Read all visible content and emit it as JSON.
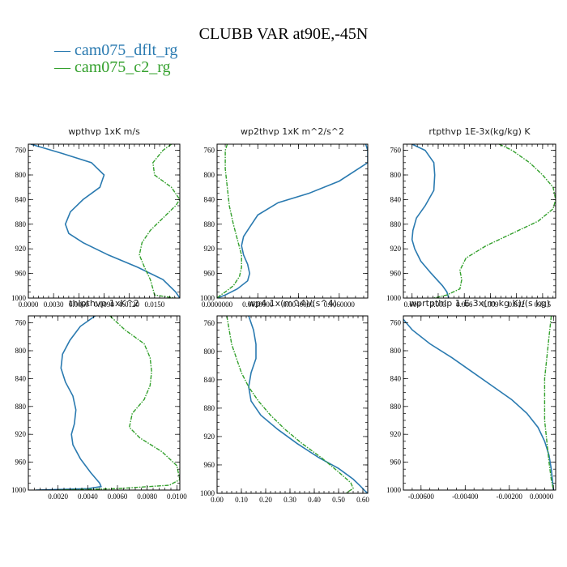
{
  "figure": {
    "title": "CLUBB VAR at90E,-45N",
    "legend": [
      {
        "label": "cam075_dflt_rg",
        "color": "#2a7ab0"
      },
      {
        "label": "cam075_c2_rg",
        "color": "#33a02c"
      }
    ]
  },
  "chart_data": [
    {
      "type": "line",
      "title": "wpthvp  1xK m/s",
      "xlim": [
        0.0,
        0.018
      ],
      "ylim": [
        1000,
        750
      ],
      "xticks": [
        "0.0000",
        "0.0030",
        "0.0060",
        "0.0090",
        "0.0120",
        "0.0150"
      ],
      "xtick_values": [
        0,
        0.003,
        0.006,
        0.009,
        0.012,
        0.015
      ],
      "yticks": [
        "760",
        "800",
        "840",
        "880",
        "920",
        "960",
        "1000"
      ],
      "ytick_values": [
        760,
        800,
        840,
        880,
        920,
        960,
        1000
      ],
      "series": [
        {
          "name": "cam075_dflt_rg",
          "x": [
            0.0003,
            0.004,
            0.0075,
            0.009,
            0.0085,
            0.0065,
            0.005,
            0.0044,
            0.0048,
            0.0065,
            0.0095,
            0.013,
            0.016,
            0.0175,
            0.018
          ],
          "y": [
            750,
            765,
            780,
            800,
            820,
            840,
            860,
            880,
            895,
            910,
            930,
            950,
            970,
            990,
            1000
          ]
        },
        {
          "name": "cam075_c2_rg",
          "x": [
            0.017,
            0.016,
            0.0148,
            0.015,
            0.017,
            0.018,
            0.0175,
            0.016,
            0.0145,
            0.0135,
            0.0132,
            0.0138,
            0.0145,
            0.0148,
            0.015,
            0.0175
          ],
          "y": [
            750,
            760,
            780,
            800,
            820,
            840,
            850,
            870,
            890,
            910,
            930,
            950,
            970,
            985,
            995,
            1000
          ]
        }
      ]
    },
    {
      "type": "line",
      "title": "wp2thvp  1xK m^2/s^2",
      "xlim": [
        0.0,
        0.0074
      ],
      "ylim": [
        1000,
        750
      ],
      "xticks": [
        "0.0000000",
        "0.0020000",
        "0.0040000",
        "0.0060000"
      ],
      "xtick_values": [
        0,
        0.002,
        0.004,
        0.006
      ],
      "yticks": [
        "760",
        "800",
        "840",
        "880",
        "920",
        "960",
        "1000"
      ],
      "ytick_values": [
        760,
        800,
        840,
        880,
        920,
        960,
        1000
      ],
      "series": [
        {
          "name": "cam075_dflt_rg",
          "x": [
            0.0073,
            0.0074,
            0.0074,
            0.006,
            0.0045,
            0.003,
            0.002,
            0.0016,
            0.0013,
            0.0012,
            0.0013,
            0.0015,
            0.0016,
            0.0015,
            0.001,
            0.0004,
            0.0
          ],
          "y": [
            750,
            760,
            780,
            810,
            830,
            845,
            865,
            885,
            900,
            915,
            930,
            945,
            960,
            972,
            985,
            995,
            1000
          ]
        },
        {
          "name": "cam075_c2_rg",
          "x": [
            0.0005,
            0.0004,
            0.0004,
            0.0005,
            0.0006,
            0.0008,
            0.001,
            0.0012,
            0.0012,
            0.0011,
            0.0008,
            0.0004,
            0.0001,
            0.0
          ],
          "y": [
            750,
            760,
            790,
            820,
            850,
            880,
            905,
            930,
            950,
            965,
            980,
            990,
            997,
            1000
          ]
        }
      ]
    },
    {
      "type": "line",
      "title": "rtpthvp  1E-3x(kg/kg) K",
      "xlim": [
        -0.001,
        0.0165
      ],
      "ylim": [
        1000,
        750
      ],
      "xticks": [
        "0.000",
        "0.003",
        "0.006",
        "0.009",
        "0.012",
        "0.015"
      ],
      "xtick_values": [
        0,
        0.003,
        0.006,
        0.009,
        0.012,
        0.015
      ],
      "yticks": [
        "760",
        "800",
        "840",
        "880",
        "920",
        "960",
        "1000"
      ],
      "ytick_values": [
        760,
        800,
        840,
        880,
        920,
        960,
        1000
      ],
      "series": [
        {
          "name": "cam075_dflt_rg",
          "x": [
            0.0,
            0.0015,
            0.0025,
            0.0026,
            0.0025,
            0.0015,
            0.0005,
            0.0001,
            0.0,
            0.0003,
            0.001,
            0.0022,
            0.0035,
            0.004,
            0.0042
          ],
          "y": [
            750,
            760,
            780,
            800,
            825,
            850,
            870,
            890,
            905,
            920,
            940,
            960,
            980,
            990,
            1000
          ]
        },
        {
          "name": "cam075_c2_rg",
          "x": [
            0.01,
            0.0115,
            0.0135,
            0.015,
            0.0162,
            0.0165,
            0.0162,
            0.0145,
            0.0115,
            0.0085,
            0.0062,
            0.0055,
            0.0057,
            0.0055,
            0.004,
            0.0025
          ],
          "y": [
            750,
            760,
            780,
            800,
            820,
            840,
            855,
            875,
            895,
            915,
            935,
            955,
            970,
            985,
            995,
            1000
          ]
        }
      ]
    },
    {
      "type": "line",
      "title": "thlpthvp  1xK^2",
      "xlim": [
        0.0,
        0.0102
      ],
      "ylim": [
        1000,
        750
      ],
      "xticks": [
        "0.0020",
        "0.0040",
        "0.0060",
        "0.0080",
        "0.0100"
      ],
      "xtick_values": [
        0.002,
        0.004,
        0.006,
        0.008,
        0.01
      ],
      "yticks": [
        "760",
        "800",
        "840",
        "880",
        "920",
        "960",
        "1000"
      ],
      "ytick_values": [
        760,
        800,
        840,
        880,
        920,
        960,
        1000
      ],
      "series": [
        {
          "name": "cam075_dflt_rg",
          "x": [
            0.0045,
            0.0035,
            0.0028,
            0.0023,
            0.0022,
            0.0025,
            0.003,
            0.0032,
            0.0031,
            0.0029,
            0.003,
            0.0035,
            0.0042,
            0.0048,
            0.0049,
            0.004,
            0.0005
          ],
          "y": [
            750,
            765,
            785,
            805,
            825,
            845,
            865,
            885,
            905,
            920,
            935,
            955,
            975,
            990,
            995,
            998,
            1000
          ]
        },
        {
          "name": "cam075_c2_rg",
          "x": [
            0.0055,
            0.0065,
            0.0078,
            0.0082,
            0.0083,
            0.0082,
            0.0078,
            0.007,
            0.0068,
            0.0075,
            0.009,
            0.01,
            0.0102,
            0.0095,
            0.006,
            0.002
          ],
          "y": [
            750,
            770,
            790,
            810,
            830,
            850,
            870,
            890,
            910,
            925,
            945,
            965,
            985,
            993,
            998,
            1000
          ]
        }
      ]
    },
    {
      "type": "line",
      "title": "wp4  1x(m^4)/(s^4)",
      "xlim": [
        0.0,
        0.62
      ],
      "ylim": [
        1000,
        750
      ],
      "xticks": [
        "0.00",
        "0.10",
        "0.20",
        "0.30",
        "0.40",
        "0.50",
        "0.60"
      ],
      "xtick_values": [
        0,
        0.1,
        0.2,
        0.3,
        0.4,
        0.5,
        0.6
      ],
      "yticks": [
        "760",
        "800",
        "840",
        "880",
        "920",
        "960",
        "1000"
      ],
      "ytick_values": [
        760,
        800,
        840,
        880,
        920,
        960,
        1000
      ],
      "series": [
        {
          "name": "cam075_dflt_rg",
          "x": [
            0.13,
            0.15,
            0.16,
            0.16,
            0.14,
            0.13,
            0.14,
            0.18,
            0.25,
            0.33,
            0.42,
            0.5,
            0.56,
            0.59,
            0.61,
            0.62
          ],
          "y": [
            750,
            770,
            790,
            810,
            830,
            850,
            870,
            890,
            910,
            930,
            950,
            965,
            980,
            990,
            997,
            1000
          ]
        },
        {
          "name": "cam075_c2_rg",
          "x": [
            0.04,
            0.05,
            0.06,
            0.08,
            0.1,
            0.13,
            0.17,
            0.22,
            0.28,
            0.35,
            0.43,
            0.5,
            0.55,
            0.56,
            0.53
          ],
          "y": [
            750,
            770,
            790,
            810,
            830,
            850,
            870,
            890,
            910,
            930,
            950,
            970,
            985,
            993,
            1000
          ]
        }
      ]
    },
    {
      "type": "line",
      "title": "wprtpthlp  1-E-3x(m kg K)/(s kg)",
      "xlim": [
        -0.0068,
        0.0001
      ],
      "ylim": [
        1000,
        750
      ],
      "xticks": [
        "-0.00600",
        "-0.00400",
        "-0.00200",
        "0.00000"
      ],
      "xtick_values": [
        -0.006,
        -0.004,
        -0.002,
        0
      ],
      "yticks": [
        "760",
        "800",
        "840",
        "880",
        "920",
        "960",
        "1000"
      ],
      "ytick_values": [
        760,
        800,
        840,
        880,
        920,
        960,
        1000
      ],
      "series": [
        {
          "name": "cam075_dflt_rg",
          "x": [
            -0.0068,
            -0.0064,
            -0.0056,
            -0.0046,
            -0.0037,
            -0.0028,
            -0.0019,
            -0.0012,
            -0.0007,
            -0.0004,
            -0.0002,
            -0.0001,
            0.0
          ],
          "y": [
            755,
            770,
            790,
            810,
            830,
            850,
            870,
            890,
            910,
            930,
            950,
            970,
            1000
          ]
        },
        {
          "name": "cam075_c2_rg",
          "x": [
            -0.0001,
            -0.0002,
            -0.0003,
            -0.0004,
            -0.0004,
            -0.0004,
            -0.0003,
            -0.0002,
            -0.0001,
            0.0
          ],
          "y": [
            750,
            780,
            810,
            840,
            870,
            900,
            930,
            960,
            985,
            1000
          ]
        }
      ]
    }
  ]
}
